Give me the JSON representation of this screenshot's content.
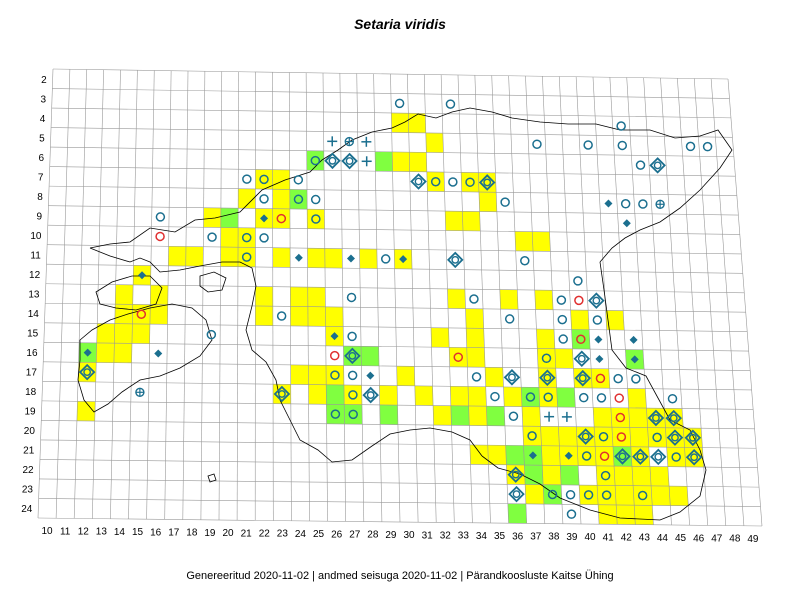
{
  "title": "Setaria viridis",
  "footer": {
    "generated": "Genereeritud 2020-11-02",
    "data_state": "andmed seisuga 2020-11-02",
    "society": "Pärandkoosluste Kaitse Ühing",
    "separator": "|"
  },
  "grid": {
    "cols": [
      10,
      11,
      12,
      13,
      14,
      15,
      16,
      17,
      18,
      19,
      20,
      21,
      22,
      23,
      24,
      25,
      26,
      27,
      28,
      29,
      30,
      31,
      32,
      33,
      34,
      35,
      36,
      37,
      38,
      39,
      40,
      41,
      42,
      43,
      44,
      45,
      46,
      47,
      48,
      49
    ],
    "rows": [
      2,
      3,
      4,
      5,
      6,
      7,
      8,
      9,
      10,
      11,
      12,
      13,
      14,
      15,
      16,
      17,
      18,
      19,
      20,
      21,
      22,
      23,
      24
    ]
  },
  "colors": {
    "yellow": "#ffff00",
    "green": "#80ff40",
    "marker": "#1b6f8f",
    "red": "#e03030",
    "grid": "#999999",
    "coast": "#000000"
  },
  "legend_markers": [
    "circle",
    "diamond",
    "ring-diamond",
    "plus",
    "circle-plus",
    "red-circle"
  ],
  "cells_yellow": [
    [
      30,
      4
    ],
    [
      31,
      4
    ],
    [
      32,
      5
    ],
    [
      30,
      6
    ],
    [
      31,
      6
    ],
    [
      22,
      7
    ],
    [
      23,
      7
    ],
    [
      21,
      8
    ],
    [
      23,
      8
    ],
    [
      32,
      7
    ],
    [
      34,
      7
    ],
    [
      35,
      7
    ],
    [
      35,
      8
    ],
    [
      22,
      9
    ],
    [
      23,
      9
    ],
    [
      19,
      9
    ],
    [
      25,
      9
    ],
    [
      33,
      9
    ],
    [
      34,
      9
    ],
    [
      20,
      10
    ],
    [
      21,
      10
    ],
    [
      37,
      10
    ],
    [
      38,
      10
    ],
    [
      17,
      11
    ],
    [
      18,
      11
    ],
    [
      20,
      11
    ],
    [
      21,
      11
    ],
    [
      23,
      11
    ],
    [
      25,
      11
    ],
    [
      26,
      11
    ],
    [
      28,
      11
    ],
    [
      30,
      11
    ],
    [
      15,
      12
    ],
    [
      14,
      13
    ],
    [
      16,
      13
    ],
    [
      22,
      13
    ],
    [
      24,
      13
    ],
    [
      25,
      13
    ],
    [
      33,
      13
    ],
    [
      36,
      13
    ],
    [
      38,
      13
    ],
    [
      14,
      14
    ],
    [
      15,
      14
    ],
    [
      16,
      14
    ],
    [
      22,
      14
    ],
    [
      24,
      14
    ],
    [
      25,
      14
    ],
    [
      26,
      14
    ],
    [
      34,
      14
    ],
    [
      40,
      14
    ],
    [
      42,
      14
    ],
    [
      13,
      15
    ],
    [
      14,
      15
    ],
    [
      15,
      15
    ],
    [
      26,
      15
    ],
    [
      32,
      15
    ],
    [
      34,
      15
    ],
    [
      38,
      15
    ],
    [
      13,
      16
    ],
    [
      14,
      16
    ],
    [
      33,
      16
    ],
    [
      34,
      16
    ],
    [
      38,
      16
    ],
    [
      39,
      16
    ],
    [
      12,
      17
    ],
    [
      24,
      17
    ],
    [
      25,
      17
    ],
    [
      26,
      17
    ],
    [
      30,
      17
    ],
    [
      35,
      17
    ],
    [
      38,
      17
    ],
    [
      40,
      17
    ],
    [
      41,
      17
    ],
    [
      23,
      18
    ],
    [
      25,
      18
    ],
    [
      27,
      18
    ],
    [
      29,
      18
    ],
    [
      31,
      18
    ],
    [
      33,
      18
    ],
    [
      34,
      18
    ],
    [
      36,
      18
    ],
    [
      38,
      18
    ],
    [
      43,
      18
    ],
    [
      12,
      19
    ],
    [
      32,
      19
    ],
    [
      33,
      19
    ],
    [
      34,
      19
    ],
    [
      35,
      19
    ],
    [
      37,
      19
    ],
    [
      41,
      19
    ],
    [
      42,
      19
    ],
    [
      43,
      19
    ],
    [
      44,
      19
    ],
    [
      45,
      19
    ],
    [
      37,
      20
    ],
    [
      38,
      20
    ],
    [
      39,
      20
    ],
    [
      40,
      20
    ],
    [
      41,
      20
    ],
    [
      42,
      20
    ],
    [
      43,
      20
    ],
    [
      44,
      20
    ],
    [
      45,
      20
    ],
    [
      46,
      20
    ],
    [
      34,
      21
    ],
    [
      35,
      21
    ],
    [
      38,
      21
    ],
    [
      39,
      21
    ],
    [
      40,
      21
    ],
    [
      41,
      21
    ],
    [
      42,
      21
    ],
    [
      43,
      21
    ],
    [
      45,
      21
    ],
    [
      46,
      21
    ],
    [
      36,
      22
    ],
    [
      38,
      22
    ],
    [
      41,
      22
    ],
    [
      42,
      22
    ],
    [
      43,
      22
    ],
    [
      44,
      22
    ],
    [
      37,
      23
    ],
    [
      40,
      23
    ],
    [
      41,
      23
    ],
    [
      42,
      23
    ],
    [
      43,
      23
    ],
    [
      44,
      23
    ],
    [
      45,
      23
    ],
    [
      41,
      24
    ],
    [
      42,
      24
    ],
    [
      43,
      24
    ]
  ],
  "cells_green": [
    [
      29,
      6
    ],
    [
      25,
      6
    ],
    [
      20,
      9
    ],
    [
      24,
      8
    ],
    [
      12,
      16
    ],
    [
      27,
      16
    ],
    [
      28,
      16
    ],
    [
      26,
      18
    ],
    [
      26,
      19
    ],
    [
      27,
      19
    ],
    [
      29,
      19
    ],
    [
      33,
      19
    ],
    [
      40,
      15
    ],
    [
      43,
      16
    ],
    [
      37,
      18
    ],
    [
      37,
      21
    ],
    [
      36,
      21
    ],
    [
      42,
      21
    ],
    [
      39,
      18
    ],
    [
      35,
      19
    ],
    [
      37,
      22
    ],
    [
      39,
      22
    ],
    [
      38,
      23
    ],
    [
      36,
      24
    ]
  ],
  "markers": [
    {
      "t": "circle",
      "c": 30,
      "r": 3
    },
    {
      "t": "circle",
      "c": 33,
      "r": 3
    },
    {
      "t": "plus",
      "c": 26,
      "r": 5
    },
    {
      "t": "circle-plus",
      "c": 27,
      "r": 5
    },
    {
      "t": "plus",
      "c": 28,
      "r": 5
    },
    {
      "t": "circle",
      "c": 25,
      "r": 6
    },
    {
      "t": "ring-diamond",
      "c": 26,
      "r": 6
    },
    {
      "t": "ring-diamond",
      "c": 27,
      "r": 6
    },
    {
      "t": "plus",
      "c": 28,
      "r": 6
    },
    {
      "t": "circle",
      "c": 21,
      "r": 7
    },
    {
      "t": "circle",
      "c": 22,
      "r": 7
    },
    {
      "t": "circle",
      "c": 24,
      "r": 7
    },
    {
      "t": "ring-diamond",
      "c": 31,
      "r": 7
    },
    {
      "t": "circle",
      "c": 32,
      "r": 7
    },
    {
      "t": "circle",
      "c": 33,
      "r": 7
    },
    {
      "t": "circle",
      "c": 34,
      "r": 7
    },
    {
      "t": "ring-diamond",
      "c": 35,
      "r": 7
    },
    {
      "t": "circle",
      "c": 22,
      "r": 8
    },
    {
      "t": "circle",
      "c": 24,
      "r": 8
    },
    {
      "t": "circle",
      "c": 25,
      "r": 8
    },
    {
      "t": "circle",
      "c": 36,
      "r": 8
    },
    {
      "t": "circle",
      "c": 16,
      "r": 9
    },
    {
      "t": "red-circle",
      "c": 23,
      "r": 9
    },
    {
      "t": "diamond",
      "c": 22,
      "r": 9
    },
    {
      "t": "circle",
      "c": 25,
      "r": 9
    },
    {
      "t": "red-circle",
      "c": 16,
      "r": 10
    },
    {
      "t": "circle",
      "c": 19,
      "r": 10
    },
    {
      "t": "circle",
      "c": 21,
      "r": 10
    },
    {
      "t": "circle",
      "c": 22,
      "r": 10
    },
    {
      "t": "circle",
      "c": 21,
      "r": 11
    },
    {
      "t": "diamond",
      "c": 24,
      "r": 11
    },
    {
      "t": "diamond",
      "c": 27,
      "r": 11
    },
    {
      "t": "circle",
      "c": 29,
      "r": 11
    },
    {
      "t": "diamond",
      "c": 30,
      "r": 11
    },
    {
      "t": "ring-diamond",
      "c": 33,
      "r": 11
    },
    {
      "t": "circle",
      "c": 37,
      "r": 11
    },
    {
      "t": "diamond",
      "c": 15,
      "r": 12
    },
    {
      "t": "circle",
      "c": 40,
      "r": 12
    },
    {
      "t": "circle",
      "c": 27,
      "r": 13
    },
    {
      "t": "circle",
      "c": 34,
      "r": 13
    },
    {
      "t": "circle",
      "c": 39,
      "r": 13
    },
    {
      "t": "red-circle",
      "c": 40,
      "r": 13
    },
    {
      "t": "ring-diamond",
      "c": 41,
      "r": 13
    },
    {
      "t": "red-circle",
      "c": 15,
      "r": 14
    },
    {
      "t": "circle",
      "c": 23,
      "r": 14
    },
    {
      "t": "circle",
      "c": 36,
      "r": 14
    },
    {
      "t": "circle",
      "c": 39,
      "r": 14
    },
    {
      "t": "circle",
      "c": 41,
      "r": 14
    },
    {
      "t": "circle",
      "c": 19,
      "r": 15
    },
    {
      "t": "diamond",
      "c": 26,
      "r": 15
    },
    {
      "t": "circle",
      "c": 27,
      "r": 15
    },
    {
      "t": "circle",
      "c": 39,
      "r": 15
    },
    {
      "t": "red-circle",
      "c": 40,
      "r": 15
    },
    {
      "t": "diamond",
      "c": 41,
      "r": 15
    },
    {
      "t": "diamond",
      "c": 43,
      "r": 15
    },
    {
      "t": "diamond",
      "c": 12,
      "r": 16
    },
    {
      "t": "diamond",
      "c": 16,
      "r": 16
    },
    {
      "t": "red-circle",
      "c": 26,
      "r": 16
    },
    {
      "t": "ring-diamond",
      "c": 27,
      "r": 16
    },
    {
      "t": "red-circle",
      "c": 33,
      "r": 16
    },
    {
      "t": "circle",
      "c": 38,
      "r": 16
    },
    {
      "t": "ring-diamond",
      "c": 40,
      "r": 16
    },
    {
      "t": "diamond",
      "c": 41,
      "r": 16
    },
    {
      "t": "diamond",
      "c": 43,
      "r": 16
    },
    {
      "t": "ring-diamond",
      "c": 12,
      "r": 17
    },
    {
      "t": "circle",
      "c": 26,
      "r": 17
    },
    {
      "t": "circle",
      "c": 27,
      "r": 17
    },
    {
      "t": "diamond",
      "c": 28,
      "r": 17
    },
    {
      "t": "circle",
      "c": 34,
      "r": 17
    },
    {
      "t": "ring-diamond",
      "c": 36,
      "r": 17
    },
    {
      "t": "ring-diamond",
      "c": 38,
      "r": 17
    },
    {
      "t": "ring-diamond",
      "c": 40,
      "r": 17
    },
    {
      "t": "red-circle",
      "c": 41,
      "r": 17
    },
    {
      "t": "circle",
      "c": 42,
      "r": 17
    },
    {
      "t": "circle",
      "c": 43,
      "r": 17
    },
    {
      "t": "circle-plus",
      "c": 15,
      "r": 18
    },
    {
      "t": "ring-diamond",
      "c": 23,
      "r": 18
    },
    {
      "t": "circle",
      "c": 27,
      "r": 18
    },
    {
      "t": "ring-diamond",
      "c": 28,
      "r": 18
    },
    {
      "t": "circle",
      "c": 35,
      "r": 18
    },
    {
      "t": "circle",
      "c": 37,
      "r": 18
    },
    {
      "t": "circle",
      "c": 38,
      "r": 18
    },
    {
      "t": "circle",
      "c": 40,
      "r": 18
    },
    {
      "t": "circle",
      "c": 41,
      "r": 18
    },
    {
      "t": "red-circle",
      "c": 42,
      "r": 18
    },
    {
      "t": "circle",
      "c": 45,
      "r": 18
    },
    {
      "t": "circle",
      "c": 26,
      "r": 19
    },
    {
      "t": "circle",
      "c": 27,
      "r": 19
    },
    {
      "t": "circle",
      "c": 36,
      "r": 19
    },
    {
      "t": "plus",
      "c": 38,
      "r": 19
    },
    {
      "t": "plus",
      "c": 39,
      "r": 19
    },
    {
      "t": "red-circle",
      "c": 42,
      "r": 19
    },
    {
      "t": "ring-diamond",
      "c": 44,
      "r": 19
    },
    {
      "t": "ring-diamond",
      "c": 45,
      "r": 19
    },
    {
      "t": "circle",
      "c": 37,
      "r": 20
    },
    {
      "t": "ring-diamond",
      "c": 40,
      "r": 20
    },
    {
      "t": "circle",
      "c": 41,
      "r": 20
    },
    {
      "t": "red-circle",
      "c": 42,
      "r": 20
    },
    {
      "t": "circle",
      "c": 44,
      "r": 20
    },
    {
      "t": "ring-diamond",
      "c": 45,
      "r": 20
    },
    {
      "t": "ring-diamond",
      "c": 46,
      "r": 20
    },
    {
      "t": "diamond",
      "c": 37,
      "r": 21
    },
    {
      "t": "diamond",
      "c": 39,
      "r": 21
    },
    {
      "t": "circle",
      "c": 40,
      "r": 21
    },
    {
      "t": "red-circle",
      "c": 41,
      "r": 21
    },
    {
      "t": "ring-diamond",
      "c": 42,
      "r": 21
    },
    {
      "t": "ring-diamond",
      "c": 43,
      "r": 21
    },
    {
      "t": "ring-diamond",
      "c": 44,
      "r": 21
    },
    {
      "t": "circle",
      "c": 45,
      "r": 21
    },
    {
      "t": "ring-diamond",
      "c": 46,
      "r": 21
    },
    {
      "t": "ring-diamond",
      "c": 36,
      "r": 22
    },
    {
      "t": "circle",
      "c": 41,
      "r": 22
    },
    {
      "t": "ring-diamond",
      "c": 36,
      "r": 23
    },
    {
      "t": "circle",
      "c": 38,
      "r": 23
    },
    {
      "t": "circle",
      "c": 39,
      "r": 23
    },
    {
      "t": "circle",
      "c": 40,
      "r": 23
    },
    {
      "t": "circle",
      "c": 41,
      "r": 23
    },
    {
      "t": "circle",
      "c": 43,
      "r": 23
    },
    {
      "t": "circle",
      "c": 39,
      "r": 24
    },
    {
      "t": "circle",
      "c": 41,
      "r": 5
    },
    {
      "t": "circle",
      "c": 43,
      "r": 5
    },
    {
      "t": "circle",
      "c": 44,
      "r": 6
    },
    {
      "t": "ring-diamond",
      "c": 45,
      "r": 6
    },
    {
      "t": "circle",
      "c": 44,
      "r": 8
    },
    {
      "t": "circle-plus",
      "c": 45,
      "r": 8
    },
    {
      "t": "diamond",
      "c": 42,
      "r": 8
    },
    {
      "t": "circle",
      "c": 43,
      "r": 8
    },
    {
      "t": "diamond",
      "c": 43,
      "r": 9
    },
    {
      "t": "circle",
      "c": 47,
      "r": 5
    },
    {
      "t": "circle",
      "c": 48,
      "r": 5
    },
    {
      "t": "circle",
      "c": 38,
      "r": 5
    },
    {
      "t": "circle",
      "c": 43,
      "r": 4
    }
  ]
}
